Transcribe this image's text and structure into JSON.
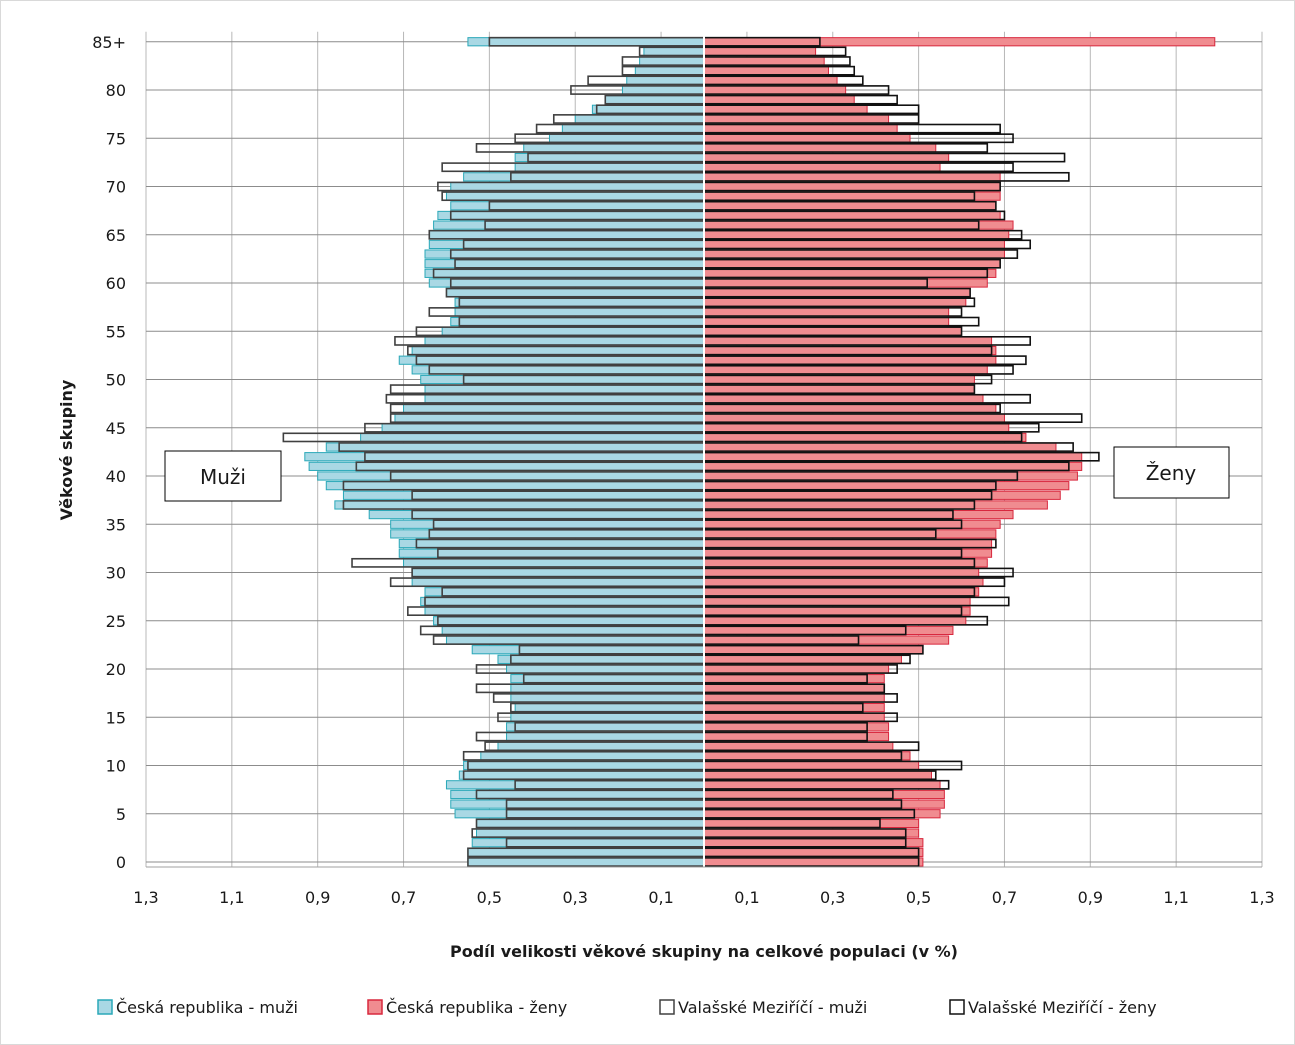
{
  "chart_data": {
    "type": "bar",
    "orientation": "horizontal-pyramid",
    "xlabel": "Podíl velikosti věkové skupiny na celkové populaci (v %)",
    "ylabel": "Věkové skupiny",
    "x_ticks": [
      "1,3",
      "1,1",
      "0,9",
      "0,7",
      "0,5",
      "0,3",
      "0,1",
      "0,1",
      "0,3",
      "0,5",
      "0,7",
      "0,9",
      "1,1",
      "1,3"
    ],
    "y_ticks": [
      "0",
      "5",
      "10",
      "15",
      "20",
      "25",
      "30",
      "35",
      "40",
      "45",
      "50",
      "55",
      "60",
      "65",
      "70",
      "75",
      "80",
      "85+"
    ],
    "xlim": [
      -1.3,
      1.3
    ],
    "grid": true,
    "legend_position": "bottom",
    "side_labels": {
      "left": "Muži",
      "right": "Ženy"
    },
    "categories": [
      "0",
      "1",
      "2",
      "3",
      "4",
      "5",
      "6",
      "7",
      "8",
      "9",
      "10",
      "11",
      "12",
      "13",
      "14",
      "15",
      "16",
      "17",
      "18",
      "19",
      "20",
      "21",
      "22",
      "23",
      "24",
      "25",
      "26",
      "27",
      "28",
      "29",
      "30",
      "31",
      "32",
      "33",
      "34",
      "35",
      "36",
      "37",
      "38",
      "39",
      "40",
      "41",
      "42",
      "43",
      "44",
      "45",
      "46",
      "47",
      "48",
      "49",
      "50",
      "51",
      "52",
      "53",
      "54",
      "55",
      "56",
      "57",
      "58",
      "59",
      "60",
      "61",
      "62",
      "63",
      "64",
      "65",
      "66",
      "67",
      "68",
      "69",
      "70",
      "71",
      "72",
      "73",
      "74",
      "75",
      "76",
      "77",
      "78",
      "79",
      "80",
      "81",
      "82",
      "83",
      "84",
      "85+"
    ],
    "series": [
      {
        "name": "Česká republika - muži",
        "color": "#a9d8e4",
        "edge": "#2aa8b8",
        "values": [
          0.55,
          0.55,
          0.54,
          0.53,
          0.53,
          0.58,
          0.59,
          0.59,
          0.6,
          0.57,
          0.56,
          0.52,
          0.48,
          0.46,
          0.46,
          0.45,
          0.44,
          0.45,
          0.45,
          0.45,
          0.46,
          0.48,
          0.54,
          0.6,
          0.61,
          0.63,
          0.65,
          0.66,
          0.65,
          0.68,
          0.68,
          0.7,
          0.71,
          0.71,
          0.73,
          0.73,
          0.78,
          0.86,
          0.84,
          0.88,
          0.9,
          0.92,
          0.93,
          0.88,
          0.8,
          0.75,
          0.72,
          0.7,
          0.65,
          0.65,
          0.66,
          0.68,
          0.71,
          0.68,
          0.65,
          0.61,
          0.59,
          0.58,
          0.58,
          0.6,
          0.64,
          0.65,
          0.65,
          0.65,
          0.64,
          0.64,
          0.63,
          0.62,
          0.59,
          0.6,
          0.59,
          0.56,
          0.44,
          0.44,
          0.42,
          0.36,
          0.33,
          0.3,
          0.26,
          0.23,
          0.19,
          0.18,
          0.16,
          0.15,
          0.14,
          0.55
        ]
      },
      {
        "name": "Česká republika - ženy",
        "color": "#f08c90",
        "edge": "#d8283e",
        "values": [
          0.51,
          0.51,
          0.51,
          0.5,
          0.5,
          0.55,
          0.56,
          0.56,
          0.55,
          0.53,
          0.5,
          0.48,
          0.44,
          0.43,
          0.43,
          0.42,
          0.42,
          0.42,
          0.42,
          0.42,
          0.43,
          0.46,
          0.51,
          0.57,
          0.58,
          0.61,
          0.62,
          0.62,
          0.64,
          0.65,
          0.64,
          0.66,
          0.67,
          0.67,
          0.68,
          0.69,
          0.72,
          0.8,
          0.83,
          0.85,
          0.87,
          0.88,
          0.88,
          0.82,
          0.75,
          0.71,
          0.7,
          0.68,
          0.65,
          0.63,
          0.63,
          0.66,
          0.68,
          0.68,
          0.67,
          0.6,
          0.57,
          0.57,
          0.61,
          0.62,
          0.66,
          0.68,
          0.69,
          0.7,
          0.7,
          0.71,
          0.72,
          0.69,
          0.68,
          0.69,
          0.69,
          0.69,
          0.55,
          0.57,
          0.54,
          0.48,
          0.45,
          0.43,
          0.38,
          0.35,
          0.33,
          0.31,
          0.29,
          0.28,
          0.26,
          1.19
        ]
      },
      {
        "name": "Valašské Meziříčí - muži",
        "color": "#ffffff",
        "edge": "#404040",
        "values": [
          0.55,
          0.55,
          0.46,
          0.54,
          0.53,
          0.46,
          0.46,
          0.53,
          0.44,
          0.56,
          0.55,
          0.56,
          0.51,
          0.53,
          0.44,
          0.48,
          0.45,
          0.49,
          0.53,
          0.42,
          0.53,
          0.45,
          0.43,
          0.63,
          0.66,
          0.62,
          0.69,
          0.65,
          0.61,
          0.73,
          0.68,
          0.82,
          0.62,
          0.67,
          0.64,
          0.63,
          0.68,
          0.84,
          0.68,
          0.84,
          0.73,
          0.81,
          0.79,
          0.85,
          0.98,
          0.79,
          0.73,
          0.73,
          0.74,
          0.73,
          0.56,
          0.64,
          0.67,
          0.69,
          0.72,
          0.67,
          0.57,
          0.64,
          0.57,
          0.6,
          0.59,
          0.63,
          0.58,
          0.59,
          0.56,
          0.64,
          0.51,
          0.59,
          0.5,
          0.61,
          0.62,
          0.45,
          0.61,
          0.41,
          0.53,
          0.44,
          0.39,
          0.35,
          0.25,
          0.23,
          0.31,
          0.27,
          0.19,
          0.19,
          0.15,
          0.5
        ]
      },
      {
        "name": "Valašské Meziříčí - ženy",
        "color": "#ffffff",
        "edge": "#111111",
        "values": [
          0.5,
          0.5,
          0.47,
          0.47,
          0.41,
          0.49,
          0.46,
          0.44,
          0.57,
          0.54,
          0.6,
          0.46,
          0.5,
          0.38,
          0.38,
          0.45,
          0.37,
          0.45,
          0.42,
          0.38,
          0.45,
          0.48,
          0.51,
          0.36,
          0.47,
          0.66,
          0.6,
          0.71,
          0.63,
          0.7,
          0.72,
          0.63,
          0.6,
          0.68,
          0.54,
          0.6,
          0.58,
          0.63,
          0.67,
          0.68,
          0.73,
          0.85,
          0.92,
          0.86,
          0.74,
          0.78,
          0.88,
          0.69,
          0.76,
          0.63,
          0.67,
          0.72,
          0.75,
          0.67,
          0.76,
          0.6,
          0.64,
          0.6,
          0.63,
          0.62,
          0.52,
          0.66,
          0.69,
          0.73,
          0.76,
          0.74,
          0.64,
          0.7,
          0.68,
          0.63,
          0.69,
          0.85,
          0.72,
          0.84,
          0.66,
          0.72,
          0.69,
          0.5,
          0.5,
          0.45,
          0.43,
          0.37,
          0.35,
          0.34,
          0.33,
          0.27
        ]
      }
    ]
  }
}
